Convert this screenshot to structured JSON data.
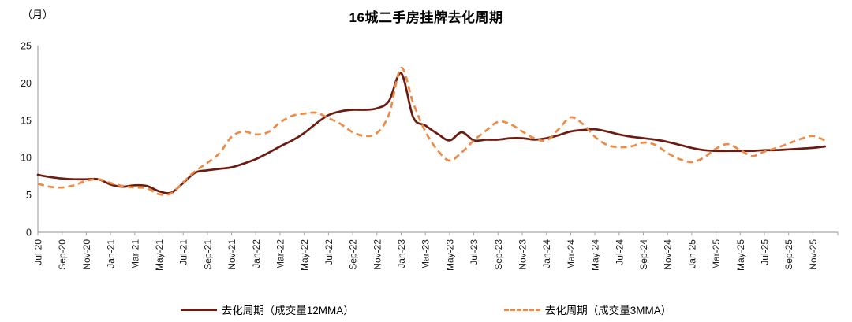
{
  "header": {
    "unit_label": "（月）",
    "title": "16城二手房挂牌去化周期"
  },
  "chart_data": {
    "type": "line",
    "title": "16城二手房挂牌去化周期",
    "y_axis_unit": "（月）",
    "ylim": [
      0,
      25
    ],
    "yticks": [
      0,
      5,
      10,
      15,
      20,
      25
    ],
    "x_tick_every": 2,
    "grid": false,
    "legend_position": "bottom",
    "axis_color": "#a6a6a6",
    "label_color": "#1a1a1a",
    "months": [
      "Jul-20",
      "Aug-20",
      "Sep-20",
      "Oct-20",
      "Nov-20",
      "Dec-20",
      "Jan-21",
      "Feb-21",
      "Mar-21",
      "Apr-21",
      "May-21",
      "Jun-21",
      "Jul-21",
      "Aug-21",
      "Sep-21",
      "Oct-21",
      "Nov-21",
      "Dec-21",
      "Jan-22",
      "Feb-22",
      "Mar-22",
      "Apr-22",
      "May-22",
      "Jun-22",
      "Jul-22",
      "Aug-22",
      "Sep-22",
      "Oct-22",
      "Nov-22",
      "Dec-22",
      "Jan-23",
      "Feb-23",
      "Mar-23",
      "Apr-23",
      "May-23",
      "Jun-23",
      "Jul-23",
      "Aug-23",
      "Sep-23",
      "Oct-23",
      "Nov-23",
      "Dec-23",
      "Jan-24",
      "Feb-24",
      "Mar-24",
      "Apr-24",
      "May-24",
      "Jun-24",
      "Jul-24",
      "Aug-24",
      "Sep-24",
      "Oct-24",
      "Nov-24",
      "Dec-24",
      "Jan-25",
      "Feb-25",
      "Mar-25",
      "Apr-25",
      "May-25",
      "Jun-25",
      "Jul-25",
      "Aug-25",
      "Sep-25",
      "Oct-25",
      "Nov-25",
      "Dec-25"
    ],
    "series": [
      {
        "name": "去化周期（成交量12MMA）",
        "style": "solid",
        "color": "#6C1B10",
        "values": [
          7.7,
          7.4,
          7.2,
          7.1,
          7.1,
          7.1,
          6.4,
          6.1,
          6.3,
          6.2,
          5.5,
          5.3,
          6.6,
          8.0,
          8.3,
          8.5,
          8.7,
          9.2,
          9.8,
          10.6,
          11.5,
          12.3,
          13.3,
          14.6,
          15.7,
          16.2,
          16.4,
          16.4,
          16.6,
          17.6,
          21.3,
          15.4,
          14.3,
          13.2,
          12.3,
          13.4,
          12.3,
          12.4,
          12.4,
          12.6,
          12.6,
          12.4,
          12.6,
          13.0,
          13.5,
          13.7,
          13.8,
          13.5,
          13.1,
          12.8,
          12.6,
          12.4,
          12.1,
          11.7,
          11.3,
          11.0,
          10.9,
          10.9,
          10.9,
          10.9,
          11.0,
          11.0,
          11.1,
          11.2,
          11.3,
          11.5
        ]
      },
      {
        "name": "去化周期（成交量3MMA）",
        "style": "dashed",
        "color": "#EF8A45",
        "values": [
          6.5,
          6.1,
          6.0,
          6.3,
          6.9,
          7.1,
          6.6,
          6.2,
          6.0,
          5.9,
          5.1,
          5.2,
          6.7,
          8.2,
          9.3,
          10.6,
          12.8,
          13.5,
          13.1,
          13.4,
          14.7,
          15.6,
          15.9,
          16.0,
          15.3,
          14.5,
          13.4,
          12.9,
          13.3,
          15.8,
          22.0,
          17.3,
          13.5,
          11.0,
          9.6,
          10.7,
          12.3,
          13.6,
          14.8,
          14.5,
          13.5,
          12.6,
          12.3,
          13.8,
          15.4,
          14.5,
          12.8,
          11.7,
          11.4,
          11.5,
          12.0,
          11.7,
          10.6,
          9.8,
          9.4,
          10.0,
          11.2,
          11.8,
          11.0,
          10.2,
          10.8,
          11.3,
          11.9,
          12.5,
          12.9,
          12.3
        ]
      }
    ]
  }
}
